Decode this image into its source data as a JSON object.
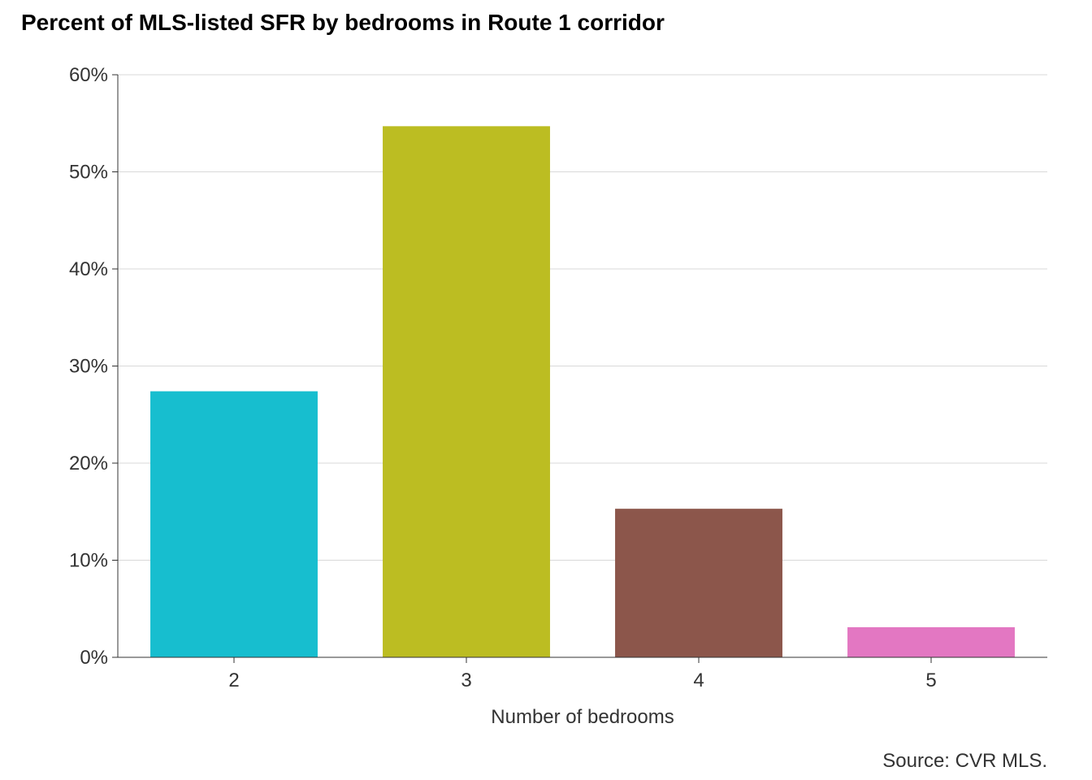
{
  "chart_data": {
    "type": "bar",
    "title": "Percent of MLS-listed SFR by bedrooms in Route 1 corridor",
    "xlabel": "Number of bedrooms",
    "ylabel": "",
    "caption": "Source: CVR MLS.",
    "categories": [
      "2",
      "3",
      "4",
      "5"
    ],
    "values": [
      27.4,
      54.7,
      15.3,
      3.1
    ],
    "colors": [
      "#17BECF",
      "#BCBD22",
      "#8C564B",
      "#E377C2"
    ],
    "ylim": [
      0,
      60
    ],
    "yticks": [
      0,
      10,
      20,
      30,
      40,
      50,
      60
    ],
    "ytick_labels": [
      "0%",
      "10%",
      "20%",
      "30%",
      "40%",
      "50%",
      "60%"
    ],
    "grid": true,
    "legend": "none"
  }
}
